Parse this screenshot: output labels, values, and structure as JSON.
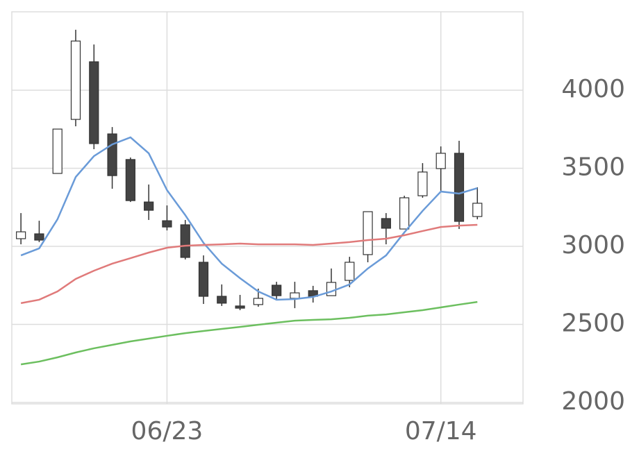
{
  "chart_data": {
    "type": "candlestick",
    "categories": [
      null,
      null,
      null,
      null,
      null,
      null,
      null,
      null,
      "06/23",
      null,
      null,
      null,
      null,
      null,
      null,
      null,
      null,
      null,
      null,
      null,
      null,
      null,
      null,
      "07/14",
      null,
      null
    ],
    "open": [
      3049,
      3080,
      3467,
      3813,
      4182,
      3720,
      3556,
      3284,
      3164,
      3138,
      2898,
      2680,
      2618,
      2627,
      2751,
      2667,
      2716,
      2684,
      2782,
      2947,
      3178,
      3111,
      3324,
      3498,
      3596,
      3191
    ],
    "high": [
      3213,
      3164,
      3751,
      4387,
      4293,
      3764,
      3569,
      3396,
      3262,
      3169,
      2942,
      2756,
      2689,
      2729,
      2773,
      2773,
      2747,
      2858,
      2933,
      3222,
      3213,
      3324,
      3533,
      3640,
      3676,
      3378
    ],
    "low": [
      3013,
      3027,
      3467,
      3769,
      3622,
      3369,
      3284,
      3169,
      3102,
      2916,
      2631,
      2618,
      2591,
      2613,
      2662,
      2604,
      2640,
      2684,
      2738,
      2898,
      3013,
      3111,
      3311,
      3356,
      3111,
      3173
    ],
    "close": [
      3093,
      3040,
      3751,
      4315,
      3658,
      3453,
      3293,
      3231,
      3124,
      2929,
      2680,
      2636,
      2604,
      2667,
      2684,
      2702,
      2680,
      2769,
      2898,
      3222,
      3116,
      3311,
      3476,
      3596,
      3160,
      3276
    ],
    "up_color": "#ffffff",
    "down_color": "#444444",
    "edge_color": "#333333",
    "series": [
      {
        "color": "#6a9bd8",
        "values": [
          2942,
          2987,
          3173,
          3444,
          3578,
          3653,
          3698,
          3596,
          3360,
          3200,
          3022,
          2889,
          2796,
          2711,
          2658,
          2662,
          2676,
          2711,
          2756,
          2858,
          2942,
          3089,
          3227,
          3351,
          3338,
          3373
        ]
      },
      {
        "color": "#e07a7a",
        "values": [
          2636,
          2658,
          2711,
          2791,
          2844,
          2889,
          2924,
          2960,
          2991,
          3004,
          3009,
          3013,
          3018,
          3013,
          3013,
          3013,
          3009,
          3018,
          3027,
          3040,
          3049,
          3071,
          3098,
          3124,
          3133,
          3138
        ]
      },
      {
        "color": "#6cbf5f",
        "values": [
          2244,
          2262,
          2289,
          2320,
          2347,
          2369,
          2391,
          2409,
          2427,
          2444,
          2458,
          2471,
          2484,
          2498,
          2511,
          2524,
          2529,
          2533,
          2542,
          2556,
          2564,
          2578,
          2591,
          2609,
          2627,
          2644
        ]
      }
    ],
    "ylim": [
      2000,
      4500
    ],
    "yticks": [
      2000,
      2500,
      3000,
      3500,
      4000
    ],
    "grid": true
  }
}
